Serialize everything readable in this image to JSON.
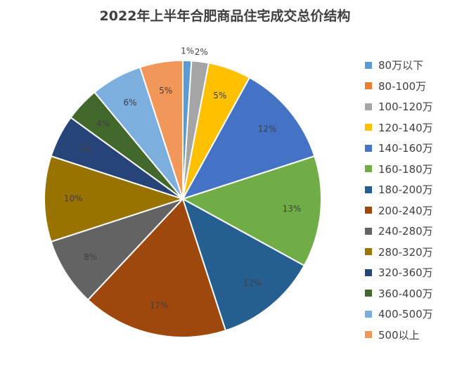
{
  "chart_data": {
    "type": "pie",
    "title": "2022年上半年合肥商品住宅成交总价结构",
    "categories": [
      "80万以下",
      "80-100万",
      "100-120万",
      "120-140万",
      "140-160万",
      "160-180万",
      "180-200万",
      "200-240万",
      "240-280万",
      "280-320万",
      "320-360万",
      "360-400万",
      "400-500万",
      "500以上"
    ],
    "values": [
      1,
      0,
      2,
      5,
      12,
      13,
      12,
      17,
      8,
      10,
      5,
      4,
      6,
      5
    ],
    "data_labels": [
      "1%",
      "",
      "2%",
      "5%",
      "12%",
      "13%",
      "12%",
      "17%",
      "8%",
      "10%",
      "5%",
      "4%",
      "6%",
      "5%"
    ],
    "colors": [
      "#5B9BD5",
      "#ED7D31",
      "#A5A5A5",
      "#FFC000",
      "#4472C4",
      "#70AD47",
      "#255E91",
      "#9E480E",
      "#636363",
      "#997300",
      "#264478",
      "#43682B",
      "#7CAFDD",
      "#F1975A"
    ],
    "unit": "%",
    "legend_position": "right"
  }
}
